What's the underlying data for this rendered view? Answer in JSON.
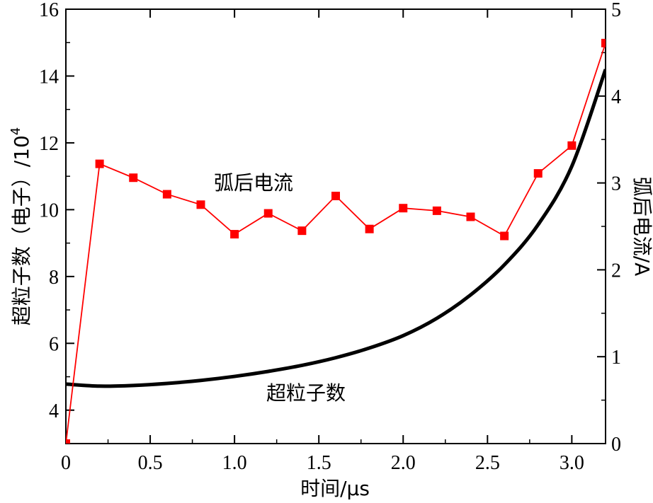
{
  "chart_data": {
    "type": "line",
    "xlabel": "时间/μs",
    "ylabel_left": "超粒子数（电子）/10",
    "ylabel_left_exponent": "4",
    "ylabel_right": "弧后电流/A",
    "xlim": [
      0,
      3.2
    ],
    "ylim_left": [
      3,
      16
    ],
    "ylim_right": [
      0,
      5
    ],
    "x_ticks": [
      "0",
      "0.5",
      "1.0",
      "1.5",
      "2.0",
      "2.5",
      "3.0"
    ],
    "y_left_ticks": [
      "4",
      "6",
      "8",
      "10",
      "12",
      "14",
      "16"
    ],
    "y_right_ticks": [
      "0",
      "1",
      "2",
      "3",
      "4",
      "5"
    ],
    "grid": false,
    "annotations": [
      "弧后电流",
      "超粒子数"
    ],
    "series": [
      {
        "name": "超粒子数",
        "axis": "left",
        "color": "#000000",
        "marker": "none",
        "x": [
          0,
          0.2,
          0.4,
          0.6,
          0.8,
          1.0,
          1.2,
          1.4,
          1.6,
          1.8,
          2.0,
          2.2,
          2.4,
          2.6,
          2.8,
          3.0,
          3.2
        ],
        "y": [
          4.78,
          4.72,
          4.74,
          4.8,
          4.89,
          5.01,
          5.16,
          5.34,
          5.57,
          5.86,
          6.23,
          6.75,
          7.45,
          8.35,
          9.55,
          11.3,
          14.2
        ]
      },
      {
        "name": "弧后电流",
        "axis": "right",
        "color": "#ff0000",
        "marker": "square",
        "x": [
          0,
          0.2,
          0.4,
          0.6,
          0.8,
          1.0,
          1.2,
          1.4,
          1.6,
          1.8,
          2.0,
          2.2,
          2.4,
          2.6,
          2.8,
          3.0,
          3.2
        ],
        "y": [
          0,
          3.22,
          3.06,
          2.87,
          2.75,
          2.41,
          2.65,
          2.45,
          2.85,
          2.47,
          2.71,
          2.68,
          2.61,
          2.39,
          3.11,
          3.43,
          4.61
        ]
      }
    ]
  }
}
